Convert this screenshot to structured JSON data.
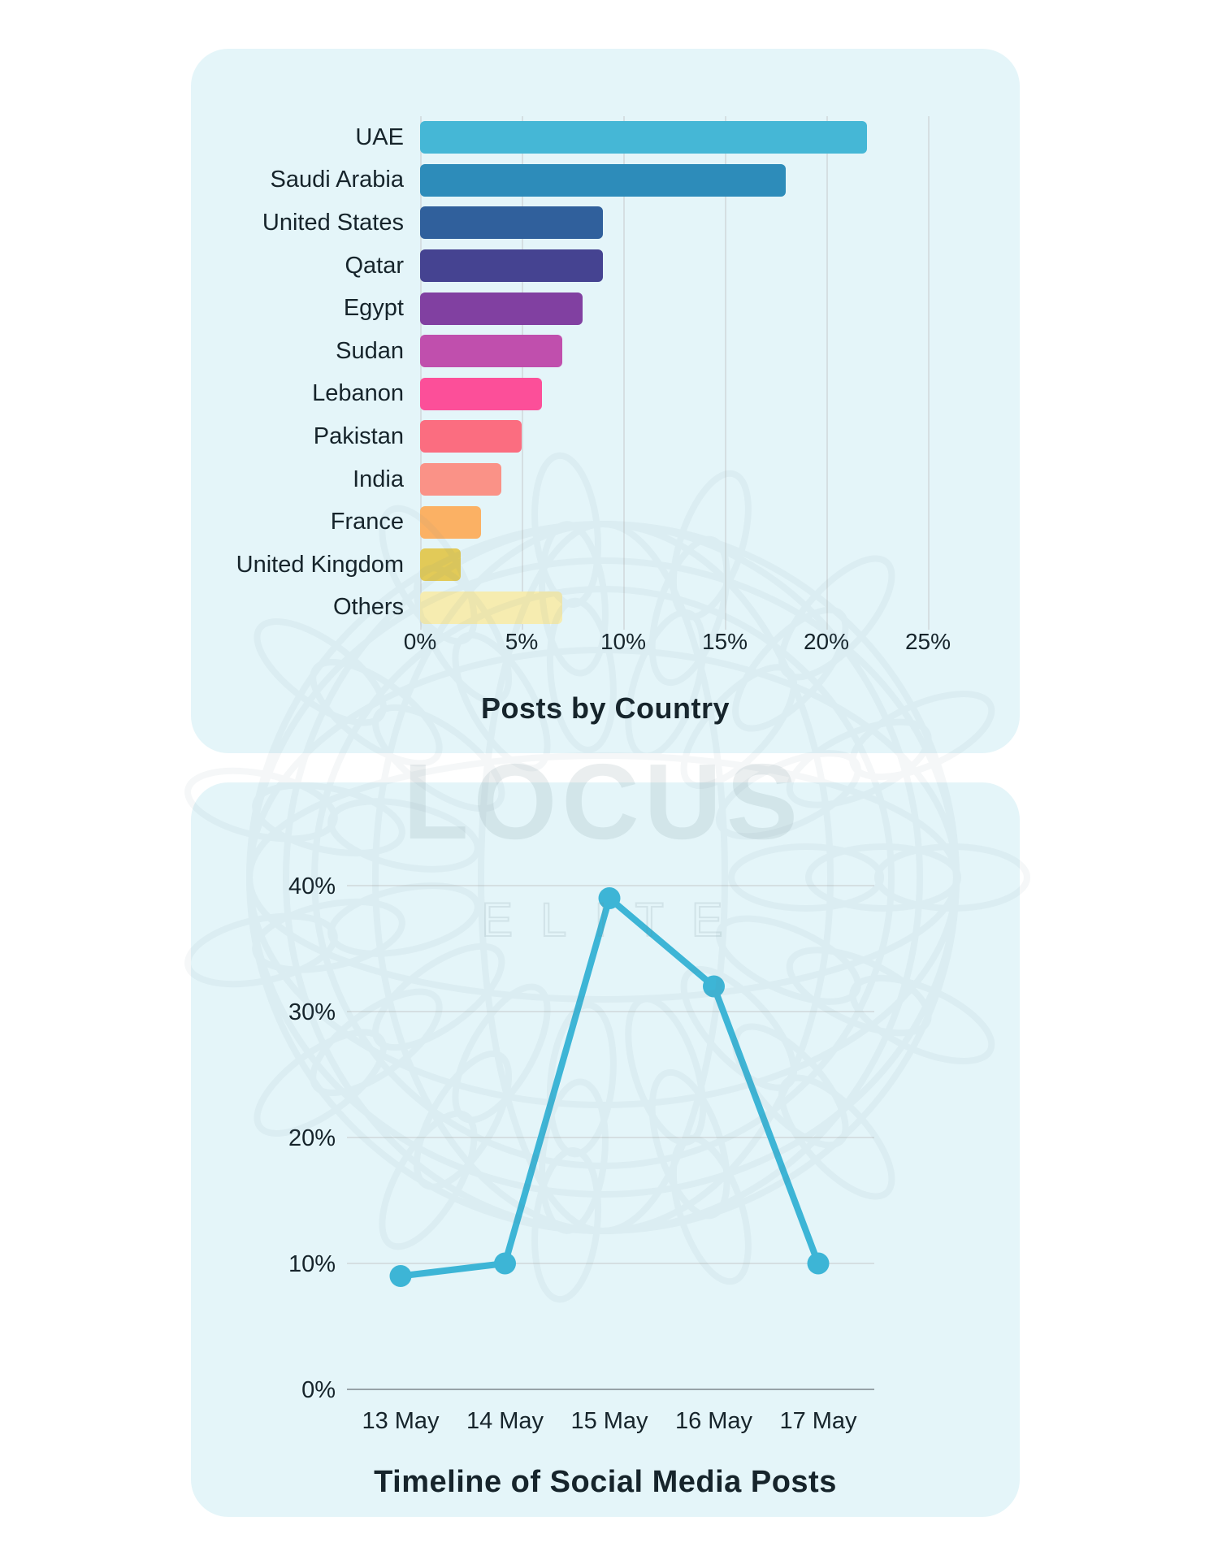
{
  "watermark": {
    "line1": "LOCUS",
    "line2": "ELITE"
  },
  "colors": {
    "page_bg": "#ffffff",
    "card_bg": "#e4f5f9",
    "text": "#16242b",
    "grid": "#d5dfe2",
    "axis": "#97a2a7",
    "line": "#3db5d6",
    "watermark": "#6d8791",
    "bar_colors": [
      "#45b7d6",
      "#2d8cba",
      "#30609c",
      "#454391",
      "#8140a1",
      "#c04fad",
      "#fc4f99",
      "#fb6d80",
      "#fa9287",
      "#fbb164",
      "#e2ca58",
      "#f6ecb0"
    ]
  },
  "chart_data": [
    {
      "type": "bar",
      "orientation": "horizontal",
      "title": "Posts by Country",
      "categories": [
        "UAE",
        "Saudi Arabia",
        "United States",
        "Qatar",
        "Egypt",
        "Sudan",
        "Lebanon",
        "Pakistan",
        "India",
        "France",
        "United Kingdom",
        "Others"
      ],
      "values": [
        22,
        18,
        9,
        9,
        8,
        7,
        6,
        5,
        4,
        3,
        2,
        7
      ],
      "unit": "%",
      "xticks": [
        "0%",
        "5%",
        "10%",
        "15%",
        "20%",
        "25%"
      ],
      "xtick_values": [
        0,
        5,
        10,
        15,
        20,
        25
      ],
      "xlim": [
        0,
        25
      ],
      "grid": "vertical",
      "legend": "none"
    },
    {
      "type": "line",
      "title": "Timeline of Social Media Posts",
      "x": [
        "13 May",
        "14 May",
        "15 May",
        "16 May",
        "17 May"
      ],
      "values": [
        9,
        10,
        39,
        32,
        10
      ],
      "unit": "%",
      "yticks": [
        "0%",
        "10%",
        "20%",
        "30%",
        "40%"
      ],
      "ytick_values": [
        0,
        10,
        20,
        30,
        40
      ],
      "ylim": [
        0,
        40
      ],
      "grid": "horizontal",
      "legend": "none"
    }
  ]
}
